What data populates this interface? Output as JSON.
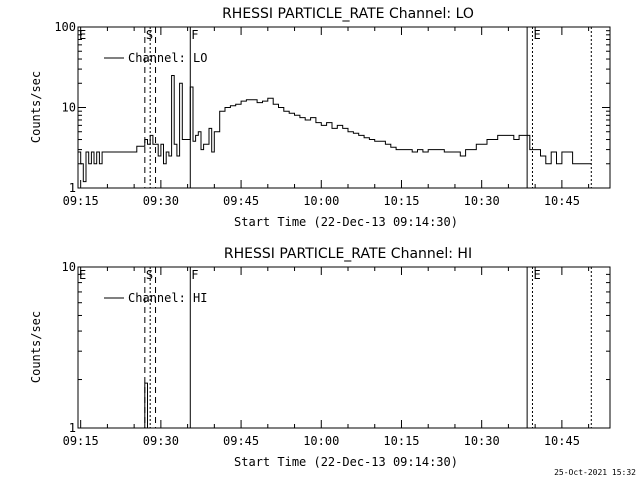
{
  "chart_data": [
    {
      "type": "line",
      "title": "RHESSI PARTICLE_RATE Channel: LO",
      "xlabel": "Start Time (22-Dec-13 09:14:30)",
      "ylabel": "Counts/sec",
      "yscale": "log",
      "ylim": [
        1,
        100
      ],
      "xlim": [
        "09:14:30",
        "10:54:00"
      ],
      "x_ticks": [
        "09:15",
        "09:30",
        "09:45",
        "10:00",
        "10:15",
        "10:30",
        "10:45"
      ],
      "y_ticks": [
        "1",
        "10",
        "100"
      ],
      "legend": "Channel: LO",
      "markers": [
        {
          "label": "E",
          "time": "09:14:30",
          "style": "solid"
        },
        {
          "label": "S",
          "time": "09:27:00",
          "style": "dashed"
        },
        {
          "label": "",
          "time": "09:28:00",
          "style": "dotted"
        },
        {
          "label": "",
          "time": "09:29:00",
          "style": "dashed"
        },
        {
          "label": "F",
          "time": "09:35:30",
          "style": "solid"
        },
        {
          "label": "",
          "time": "10:38:30",
          "style": "solid"
        },
        {
          "label": "E",
          "time": "10:39:30",
          "style": "dotted"
        },
        {
          "label": "",
          "time": "10:50:30",
          "style": "dotted"
        }
      ],
      "series": [
        {
          "name": "Channel: LO",
          "x": [
            "09:14:30",
            "09:15:00",
            "09:15:30",
            "09:16:00",
            "09:16:30",
            "09:17:00",
            "09:17:30",
            "09:18:00",
            "09:18:30",
            "09:19:00",
            "09:20:00",
            "09:21:00",
            "09:22:00",
            "09:23:00",
            "09:24:00",
            "09:25:00",
            "09:25:30",
            "09:26:00",
            "09:26:30",
            "09:27:00",
            "09:27:30",
            "09:28:00",
            "09:28:30",
            "09:29:00",
            "09:29:30",
            "09:30:00",
            "09:30:30",
            "09:31:00",
            "09:31:30",
            "09:32:00",
            "09:32:30",
            "09:33:00",
            "09:33:30",
            "09:34:00",
            "09:34:30",
            "09:35:00",
            "09:35:30",
            "09:36:00",
            "09:36:30",
            "09:37:00",
            "09:37:30",
            "09:38:00",
            "09:38:30",
            "09:39:00",
            "09:39:30",
            "09:40:00",
            "09:41:00",
            "09:42:00",
            "09:43:00",
            "09:44:00",
            "09:45:00",
            "09:46:00",
            "09:47:00",
            "09:48:00",
            "09:49:00",
            "09:50:00",
            "09:51:00",
            "09:52:00",
            "09:53:00",
            "09:54:00",
            "09:55:00",
            "09:56:00",
            "09:57:00",
            "09:58:00",
            "09:59:00",
            "10:00:00",
            "10:01:00",
            "10:02:00",
            "10:03:00",
            "10:04:00",
            "10:05:00",
            "10:06:00",
            "10:07:00",
            "10:08:00",
            "10:09:00",
            "10:10:00",
            "10:11:00",
            "10:12:00",
            "10:13:00",
            "10:14:00",
            "10:15:00",
            "10:16:00",
            "10:17:00",
            "10:18:00",
            "10:19:00",
            "10:20:00",
            "10:21:00",
            "10:22:00",
            "10:23:00",
            "10:24:00",
            "10:25:00",
            "10:26:00",
            "10:27:00",
            "10:28:00",
            "10:29:00",
            "10:30:00",
            "10:31:00",
            "10:32:00",
            "10:33:00",
            "10:34:00",
            "10:35:00",
            "10:36:00",
            "10:37:00",
            "10:38:00",
            "10:39:00",
            "10:40:00",
            "10:41:00",
            "10:42:00",
            "10:43:00",
            "10:44:00",
            "10:45:00",
            "10:46:00",
            "10:47:00",
            "10:48:00",
            "10:49:00",
            "10:50:00"
          ],
          "values": [
            2.8,
            2.0,
            1.2,
            2.8,
            2.0,
            2.8,
            2.0,
            2.8,
            2.0,
            2.8,
            2.8,
            2.8,
            2.8,
            2.8,
            2.8,
            2.8,
            3.3,
            3.3,
            3.3,
            4.0,
            3.5,
            4.5,
            3.5,
            3.5,
            2.5,
            3.5,
            2.0,
            2.8,
            2.5,
            25.0,
            3.5,
            2.5,
            20.0,
            4.0,
            4.0,
            4.0,
            18.0,
            3.8,
            4.5,
            5.0,
            3.0,
            3.5,
            3.5,
            5.5,
            2.8,
            5.0,
            9.0,
            10.0,
            10.5,
            11.0,
            12.0,
            12.5,
            12.5,
            11.5,
            12.0,
            13.0,
            11.0,
            10.0,
            9.0,
            8.5,
            8.0,
            7.5,
            7.0,
            7.5,
            6.5,
            6.0,
            6.5,
            5.5,
            6.0,
            5.5,
            5.0,
            4.8,
            4.5,
            4.2,
            4.0,
            3.8,
            3.8,
            3.5,
            3.2,
            3.0,
            3.0,
            3.0,
            2.8,
            3.0,
            2.8,
            3.0,
            3.0,
            3.0,
            2.8,
            2.8,
            2.8,
            2.5,
            3.0,
            3.0,
            3.5,
            3.5,
            4.0,
            4.0,
            4.5,
            4.5,
            4.5,
            4.0,
            4.5,
            4.5,
            3.0,
            3.0,
            2.5,
            2.0,
            2.8,
            2.0,
            2.8,
            2.8,
            2.0,
            2.0,
            2.0,
            2.0
          ]
        }
      ]
    },
    {
      "type": "line",
      "title": "RHESSI PARTICLE_RATE Channel: HI",
      "xlabel": "Start Time (22-Dec-13 09:14:30)",
      "ylabel": "Counts/sec",
      "yscale": "log",
      "ylim": [
        1,
        10
      ],
      "xlim": [
        "09:14:30",
        "10:54:00"
      ],
      "x_ticks": [
        "09:15",
        "09:30",
        "09:45",
        "10:00",
        "10:15",
        "10:30",
        "10:45"
      ],
      "y_ticks": [
        "1",
        "10"
      ],
      "legend": "Channel: HI",
      "markers": [
        {
          "label": "E",
          "time": "09:14:30",
          "style": "solid"
        },
        {
          "label": "S",
          "time": "09:27:00",
          "style": "dashed"
        },
        {
          "label": "",
          "time": "09:28:00",
          "style": "dotted"
        },
        {
          "label": "",
          "time": "09:29:00",
          "style": "dashed"
        },
        {
          "label": "F",
          "time": "09:35:30",
          "style": "solid"
        },
        {
          "label": "",
          "time": "10:38:30",
          "style": "solid"
        },
        {
          "label": "E",
          "time": "10:39:30",
          "style": "dotted"
        },
        {
          "label": "",
          "time": "10:50:30",
          "style": "dotted"
        }
      ],
      "series": [
        {
          "name": "Channel: HI",
          "x": [
            "09:26:30",
            "09:27:00",
            "09:27:30"
          ],
          "values": [
            1.0,
            1.9,
            1.0
          ]
        }
      ]
    }
  ],
  "footer_timestamp": "25-Oct-2021 15:32"
}
